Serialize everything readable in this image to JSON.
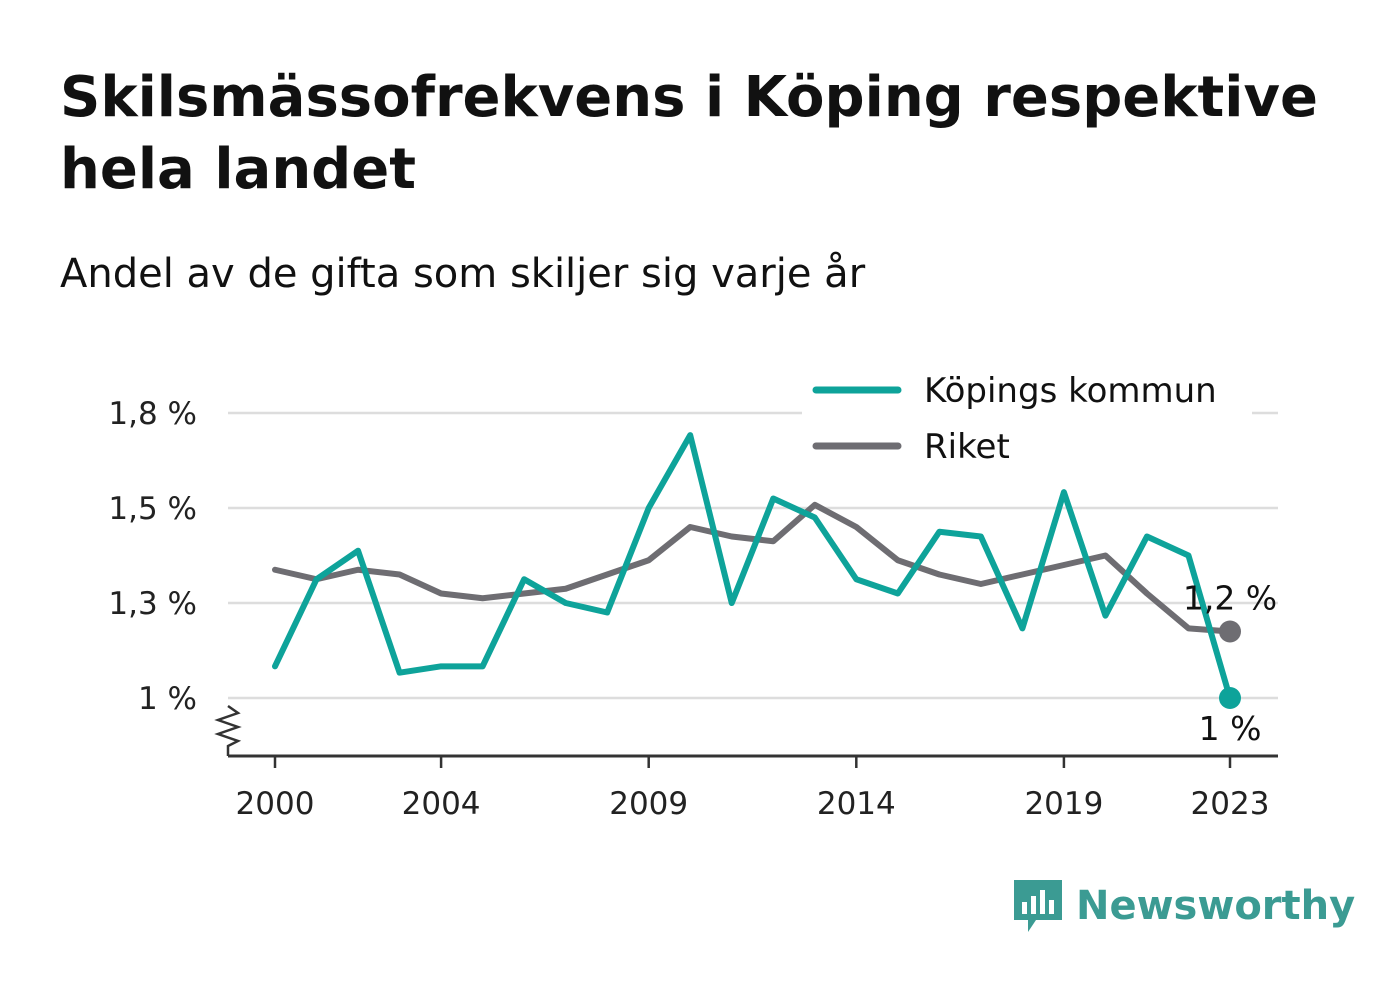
{
  "title": "Skilsmässofrekvens i Köping respektive hela landet",
  "subtitle": "Andel av de gifta som skiljer sig varje år",
  "brand": {
    "name": "Newsworthy"
  },
  "colors": {
    "kommun": "#0ea39a",
    "riket": "#6e6d72",
    "grid": "#dddddd",
    "brand": "#3b9b93"
  },
  "chart_data": {
    "type": "line",
    "x": [
      2000,
      2001,
      2002,
      2003,
      2004,
      2005,
      2006,
      2007,
      2008,
      2009,
      2010,
      2011,
      2012,
      2013,
      2014,
      2015,
      2016,
      2017,
      2018,
      2019,
      2020,
      2021,
      2022,
      2023
    ],
    "x_ticks": [
      2000,
      2004,
      2009,
      2014,
      2019,
      2023
    ],
    "x_tick_labels": [
      "2000",
      "2004",
      "2009",
      "2014",
      "2019",
      "2023"
    ],
    "y_ticks": [
      1.0,
      1.3,
      1.5,
      1.8
    ],
    "y_tick_labels": [
      "1 %",
      "1,3 %",
      "1,5 %",
      "1,8 %"
    ],
    "ylim": [
      0.88,
      1.8
    ],
    "series": [
      {
        "name": "Köpings kommun",
        "color": "#0ea39a",
        "values": [
          1.1,
          1.35,
          1.41,
          1.08,
          1.1,
          1.1,
          1.35,
          1.3,
          1.27,
          1.5,
          1.73,
          1.3,
          1.53,
          1.48,
          1.35,
          1.32,
          1.45,
          1.44,
          1.22,
          1.55,
          1.26,
          1.44,
          1.4,
          1.0
        ],
        "end_label": "1 %"
      },
      {
        "name": "Riket",
        "color": "#6e6d72",
        "values": [
          1.37,
          1.35,
          1.37,
          1.36,
          1.32,
          1.31,
          1.32,
          1.33,
          1.36,
          1.39,
          1.46,
          1.44,
          1.43,
          1.51,
          1.46,
          1.39,
          1.36,
          1.34,
          1.36,
          1.38,
          1.4,
          1.32,
          1.22,
          1.21
        ],
        "end_label": "1,2 %"
      }
    ],
    "legend": {
      "position": "top-right"
    },
    "grid": true
  }
}
